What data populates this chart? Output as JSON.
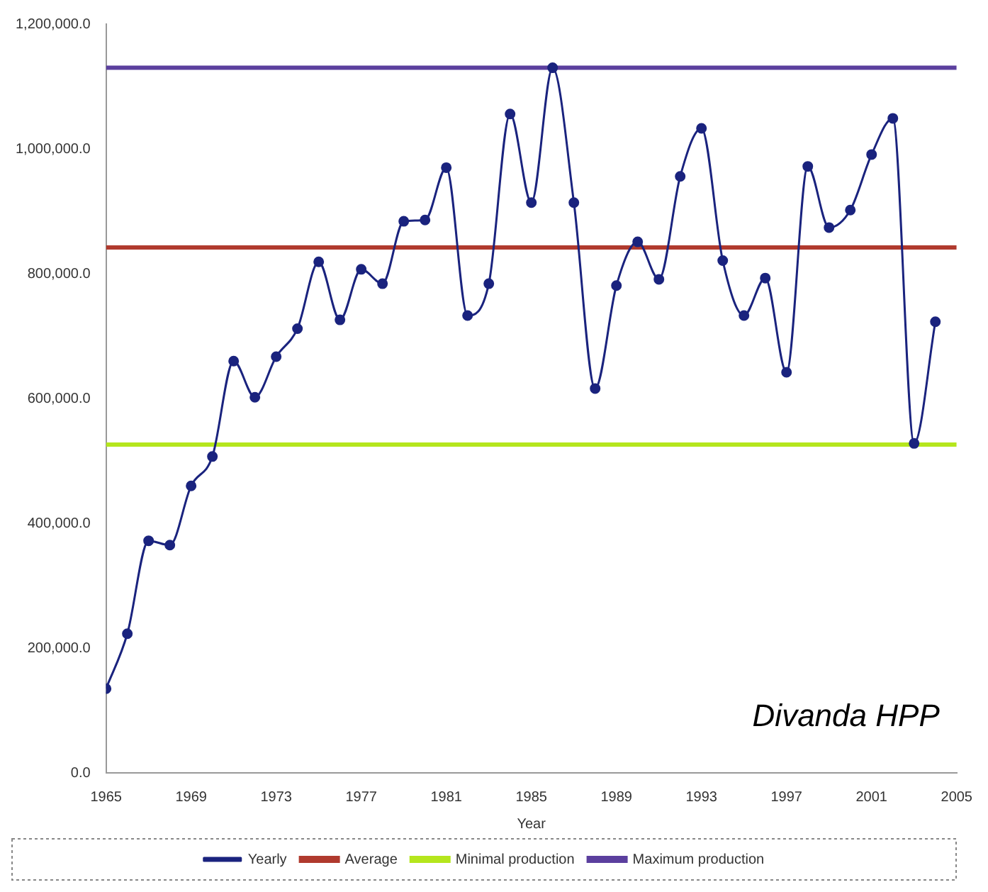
{
  "chart_data": {
    "type": "line",
    "xlabel": "Year",
    "x": [
      1965,
      1966,
      1967,
      1968,
      1969,
      1970,
      1971,
      1972,
      1973,
      1974,
      1975,
      1976,
      1977,
      1978,
      1979,
      1980,
      1981,
      1982,
      1983,
      1984,
      1985,
      1986,
      1987,
      1988,
      1989,
      1990,
      1991,
      1992,
      1993,
      1994,
      1995,
      1996,
      1997,
      1998,
      1999,
      2000,
      2001,
      2002,
      2003,
      2004
    ],
    "series": [
      {
        "name": "Yearly",
        "color": "#1a237e",
        "values": [
          135000,
          223000,
          372000,
          365000,
          460000,
          507000,
          660000,
          602000,
          667000,
          712000,
          819000,
          726000,
          807000,
          784000,
          884000,
          886000,
          970000,
          733000,
          784000,
          1056000,
          914000,
          1130000,
          914000,
          616000,
          781000,
          851000,
          791000,
          956000,
          1033000,
          821000,
          733000,
          793000,
          642000,
          972000,
          874000,
          902000,
          991000,
          1049000,
          528000,
          723000
        ]
      }
    ],
    "ref_lines": [
      {
        "axis": "y",
        "value": 842000,
        "label": "Average",
        "color": "#b03a2e"
      },
      {
        "axis": "y",
        "value": 526000,
        "label": "Minimal production",
        "color": "#b5e61d"
      },
      {
        "axis": "y",
        "value": 1130000,
        "label": "Maximum production",
        "color": "#5b3f9e"
      }
    ],
    "xlim": [
      1965,
      2005
    ],
    "xticks": [
      1965,
      1969,
      1973,
      1977,
      1981,
      1985,
      1989,
      1993,
      1997,
      2001,
      2005
    ],
    "ylim": [
      0,
      1200000
    ],
    "yticks": [
      {
        "value": 0,
        "label": "0.0"
      },
      {
        "value": 200000,
        "label": "200,000.0"
      },
      {
        "value": 400000,
        "label": "400,000.0"
      },
      {
        "value": 600000,
        "label": "600,000.0"
      },
      {
        "value": 800000,
        "label": "800,000.0"
      },
      {
        "value": 1000000,
        "label": "1,000,000.0"
      },
      {
        "value": 1200000,
        "label": "1,200,000.0"
      }
    ],
    "annotations": [
      "Divanda HPP"
    ],
    "grid": false,
    "legend": "bottom",
    "marker": "circle",
    "line_style": "solid"
  }
}
